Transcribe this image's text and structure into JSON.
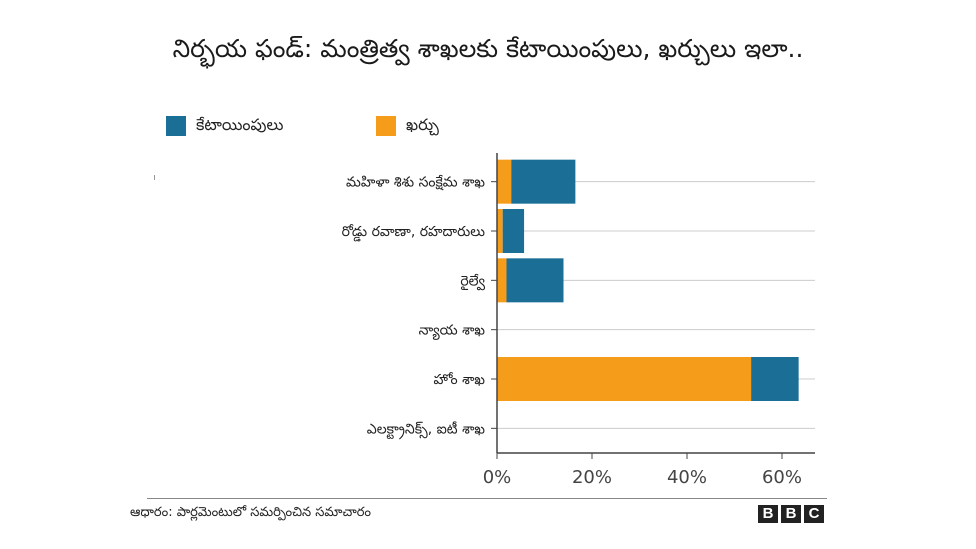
{
  "chart_data": {
    "type": "bar",
    "orientation": "horizontal",
    "stacked": true,
    "title": "నిర్భయ ఫండ్: మంత్రిత్వ శాఖలకు కేటాయింపులు, ఖర్చులు ఇలా..",
    "categories": [
      "మహిళా శిశు సంక్షేమ శాఖ",
      "రోడ్డు రవాణా, రహదారులు",
      "రైల్వే",
      "న్యాయ శాఖ",
      "హోం శాఖ",
      "ఎలక్ట్రానిక్స్, ఐటీ శాఖ"
    ],
    "series": [
      {
        "name": "ఖర్చు",
        "color": "#f59c1a",
        "values": [
          3,
          1.2,
          2,
          0,
          53.5,
          0
        ]
      },
      {
        "name": "కేటాయింపులు",
        "color": "#1b6e96",
        "values": [
          13.5,
          4.5,
          12,
          0,
          10,
          0
        ]
      }
    ],
    "xticks": [
      "0%",
      "20%",
      "40%",
      "60%"
    ],
    "xlim": [
      0,
      67
    ],
    "grid": true,
    "legend_position": "top-left"
  },
  "legend": {
    "items": [
      {
        "label": "కేటాయింపులు",
        "color": "#1b6e96"
      },
      {
        "label": "ఖర్చు",
        "color": "#f59c1a"
      }
    ]
  },
  "footer": {
    "source": "ఆధారం: పార్లమెంటులో సమర్పించిన సమాచారం",
    "logo": [
      "B",
      "B",
      "C"
    ]
  }
}
